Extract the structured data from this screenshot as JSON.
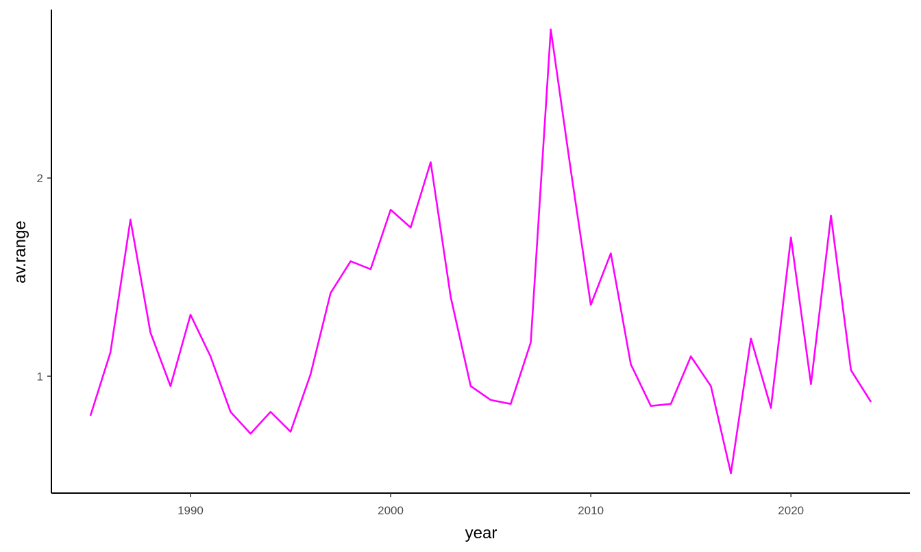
{
  "chart_data": {
    "type": "line",
    "title": "",
    "xlabel": "year",
    "ylabel": "av.range",
    "xlim": [
      1983.05,
      1985.0
    ],
    "x_range": [
      1983.05,
      2025.95
    ],
    "y_range": [
      0.41,
      2.85
    ],
    "x_ticks": [
      1990,
      2000,
      2010,
      2020
    ],
    "y_ticks": [
      1,
      2
    ],
    "grid": false,
    "legend": "none",
    "line_color": "#FF00FF",
    "series": [
      {
        "x": [
          1985,
          1986,
          1987,
          1988,
          1989,
          1990,
          1991,
          1992,
          1993,
          1994,
          1995,
          1996,
          1997,
          1998,
          1999,
          2000,
          2001,
          2002,
          2003,
          2004,
          2005,
          2006,
          2007,
          2008,
          2009,
          2010,
          2011,
          2012,
          2013,
          2014,
          2015,
          2016,
          2017,
          2018,
          2019,
          2020,
          2021,
          2022,
          2023,
          2024
        ],
        "values": [
          0.8,
          1.12,
          1.79,
          1.22,
          0.95,
          1.31,
          1.1,
          0.82,
          0.71,
          0.82,
          0.72,
          1.01,
          1.42,
          1.58,
          1.54,
          1.84,
          1.75,
          2.08,
          1.4,
          0.95,
          0.88,
          0.86,
          1.17,
          2.75,
          2.04,
          1.36,
          1.62,
          1.06,
          0.85,
          0.86,
          1.1,
          0.95,
          0.51,
          1.19,
          0.84,
          1.7,
          0.96,
          1.81,
          1.03,
          0.87
        ]
      }
    ]
  }
}
